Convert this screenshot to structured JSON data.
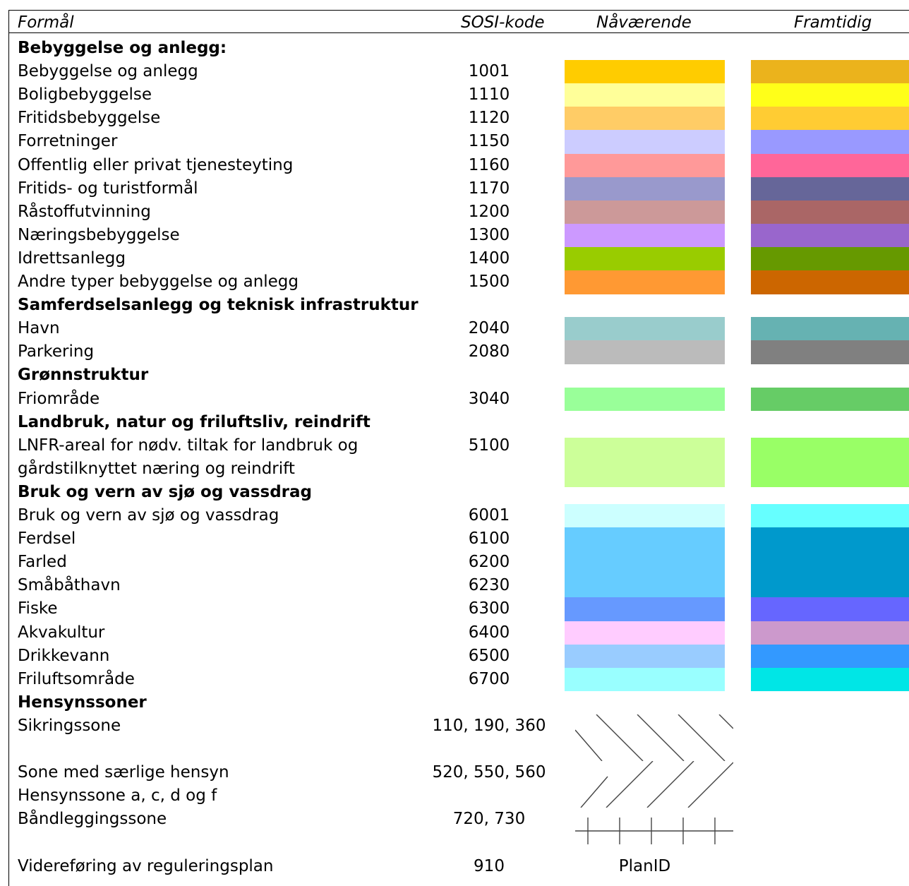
{
  "headers": {
    "purpose": "Formål",
    "sosi_code": "SOSI-kode",
    "current": "Nåværende",
    "future": "Framtidig"
  },
  "rows": [
    {
      "kind": "section",
      "label": "Bebyggelse og anlegg:"
    },
    {
      "kind": "item",
      "label": "Bebyggelse og anlegg",
      "code": "1001",
      "current": "#FFCC00",
      "future": "#EBB31C"
    },
    {
      "kind": "item",
      "label": "Boligbebyggelse",
      "code": "1110",
      "current": "#FFFF99",
      "future": "#FFFF19"
    },
    {
      "kind": "item",
      "label": "Fritidsbebyggelse",
      "code": "1120",
      "current": "#FFCC66",
      "future": "#FFCC33"
    },
    {
      "kind": "item",
      "label": "Forretninger",
      "code": "1150",
      "current": "#CCCCFF",
      "future": "#9999FF"
    },
    {
      "kind": "item",
      "label": "Offentlig eller privat tjenesteyting",
      "code": "1160",
      "current": "#FF9999",
      "future": "#FF6699"
    },
    {
      "kind": "item",
      "label": "Fritids- og turistformål",
      "code": "1170",
      "current": "#9999CC",
      "future": "#666699"
    },
    {
      "kind": "item",
      "label": "Råstoffutvinning",
      "code": "1200",
      "current": "#CC9999",
      "future": "#AA6666"
    },
    {
      "kind": "item",
      "label": "Næringsbebyggelse",
      "code": "1300",
      "current": "#CC99FF",
      "future": "#9966CC"
    },
    {
      "kind": "item",
      "label": "Idrettsanlegg",
      "code": "1400",
      "current": "#99CC00",
      "future": "#669900"
    },
    {
      "kind": "item",
      "label": "Andre typer bebyggelse og anlegg",
      "code": "1500",
      "current": "#FF9933",
      "future": "#CC6600"
    },
    {
      "kind": "section",
      "label": "Samferdselsanlegg og teknisk infrastruktur"
    },
    {
      "kind": "item",
      "label": "Havn",
      "code": "2040",
      "current": "#99CCCC",
      "future": "#66B2B2"
    },
    {
      "kind": "item",
      "label": "Parkering",
      "code": "2080",
      "current": "#BBBBBB",
      "future": "#808080"
    },
    {
      "kind": "section",
      "label": "Grønnstruktur"
    },
    {
      "kind": "item",
      "label": "Friområde",
      "code": "3040",
      "current": "#99FF99",
      "future": "#66CC66"
    },
    {
      "kind": "section",
      "label": "Landbruk, natur og friluftsliv, reindrift"
    },
    {
      "kind": "item2",
      "label": "LNFR-areal for nødv. tiltak for landbruk og",
      "label2": "gårdstilknyttet næring og reindrift",
      "code": "5100",
      "current": "#CCFF99",
      "future": "#99FF66"
    },
    {
      "kind": "section",
      "label": "Bruk og vern av sjø og vassdrag"
    },
    {
      "kind": "item",
      "label": "Bruk og vern av sjø og vassdrag",
      "code": "6001",
      "current": "#CCFFFF",
      "future": "#66FFFF"
    },
    {
      "kind": "item",
      "label": "Ferdsel",
      "code": "6100",
      "current": "#66CCFF",
      "future": "#0099CC"
    },
    {
      "kind": "item",
      "label": "Farled",
      "code": "6200",
      "current": "#66CCFF",
      "future": "#0099CC"
    },
    {
      "kind": "item",
      "label": "Småbåthavn",
      "code": "6230",
      "current": "#66CCFF",
      "future": "#0099CC"
    },
    {
      "kind": "item",
      "label": "Fiske",
      "code": "6300",
      "current": "#6699FF",
      "future": "#6666FF"
    },
    {
      "kind": "item",
      "label": "Akvakultur",
      "code": "6400",
      "current": "#FFCCFF",
      "future": "#CC99CC"
    },
    {
      "kind": "item",
      "label": "Drikkevann",
      "code": "6500",
      "current": "#99CCFF",
      "future": "#3399FF"
    },
    {
      "kind": "item",
      "label": "Friluftsområde",
      "code": "6700",
      "current": "#99FFFF",
      "future": "#00E6E6"
    },
    {
      "kind": "section",
      "label": "Hensynssoner"
    },
    {
      "kind": "zone",
      "label": "Sikringssone",
      "code": "110, 190, 360",
      "pattern": "backslash-hatch-pattern"
    },
    {
      "kind": "zone2",
      "label": "Sone med særlige hensyn",
      "label2": "Hensynssone a, c, d og f",
      "code": "520, 550, 560",
      "pattern": "slash-hatch-pattern"
    },
    {
      "kind": "zone",
      "label": "Båndleggingssone",
      "code": "720, 730",
      "pattern": "cross-line-pattern"
    },
    {
      "kind": "text",
      "label": "Videreføring av reguleringsplan",
      "code": "910",
      "text": "PlanID"
    }
  ]
}
